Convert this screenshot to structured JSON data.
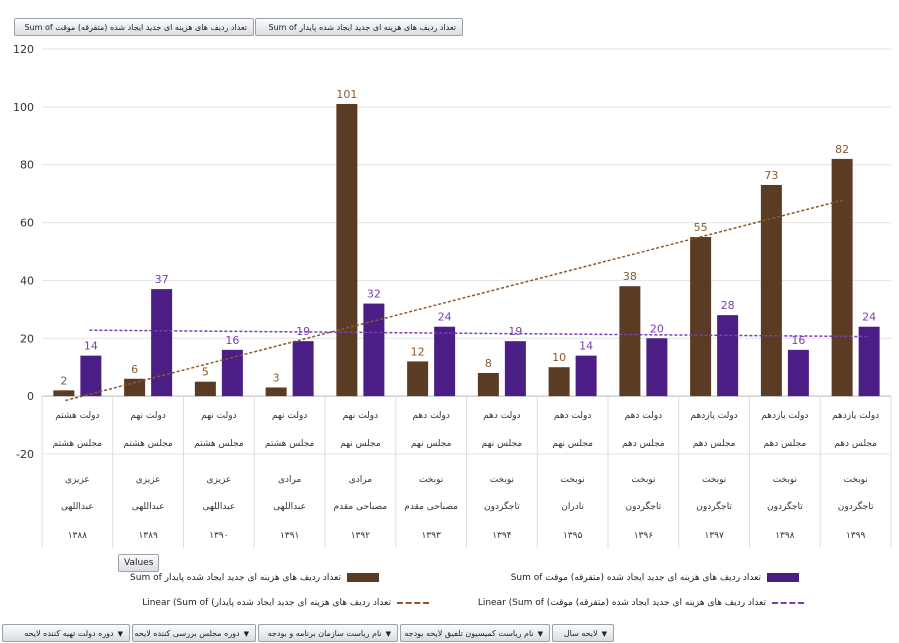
{
  "top_fields": [
    "تعداد ردیف های هزینه ای جدید ایجاد شده (متفرقه) موقت Sum of",
    "تعداد ردیف های هزینه ای جدید ایجاد شده پایدار Sum of"
  ],
  "values_button": "Values",
  "legend": [
    {
      "label": "تعداد ردیف های هزینه ای جدید ایجاد شده پایدار Sum of",
      "kind": "bar",
      "color": "#5a3b24"
    },
    {
      "label": "تعداد ردیف های هزینه ای جدید ایجاد شده (متفرقه) موقت Sum of",
      "kind": "bar",
      "color": "#4b1e86"
    },
    {
      "label": "تعداد ردیف های هزینه ای جدید ایجاد شده پایدار) Linear (Sum of",
      "kind": "trend",
      "color": "#8a5a2b"
    },
    {
      "label": "تعداد ردیف های هزینه ای جدید ایجاد شده (متفرقه) موقت) Linear (Sum of",
      "kind": "trend",
      "color": "#7a3fb0"
    }
  ],
  "bottom_fields": [
    "دوره دولت تهیه کننده لایحه",
    "دوره مجلس بررسی کننده لایحه",
    "نام ریاست سازمان برنامه و بودجه",
    "نام ریاست کمیسیون تلفیق لایحه بودجه",
    "لایحه سال"
  ],
  "chart_data": {
    "type": "bar",
    "ylim": [
      -20,
      120
    ],
    "yticks": [
      -20,
      0,
      20,
      40,
      60,
      80,
      100,
      120
    ],
    "grid": true,
    "categories": [
      {
        "gov": "دولت هشتم",
        "majlis": "مجلس هشتم",
        "pbo1": "عزیزی",
        "pbo2": "",
        "comm": "عبداللهی",
        "year": "۱۳۸۸"
      },
      {
        "gov": "دولت نهم",
        "majlis": "مجلس هشتم",
        "pbo1": "عزیزی",
        "pbo2": "",
        "comm": "عبداللهی",
        "year": "۱۳۸۹"
      },
      {
        "gov": "دولت نهم",
        "majlis": "مجلس هشتم",
        "pbo1": "عزیزی",
        "pbo2": "",
        "comm": "عبداللهی",
        "year": "۱۳۹۰"
      },
      {
        "gov": "دولت نهم",
        "majlis": "مجلس هشتم",
        "pbo1": "مرادی",
        "pbo2": "",
        "comm": "عبداللهی",
        "year": "۱۳۹۱"
      },
      {
        "gov": "دولت نهم",
        "majlis": "مجلس نهم",
        "pbo1": "مرادی",
        "pbo2": "",
        "comm": "مصباحی مقدم",
        "year": "۱۳۹۲"
      },
      {
        "gov": "دولت دهم",
        "majlis": "مجلس نهم",
        "pbo1": "نوبخت",
        "pbo2": "",
        "comm": "مصباحی مقدم",
        "year": "۱۳۹۳"
      },
      {
        "gov": "دولت دهم",
        "majlis": "مجلس نهم",
        "pbo1": "نوبخت",
        "pbo2": "",
        "comm": "تاجگردون",
        "year": "۱۳۹۴"
      },
      {
        "gov": "دولت دهم",
        "majlis": "مجلس نهم",
        "pbo1": "نوبخت",
        "pbo2": "",
        "comm": "نادران",
        "year": "۱۳۹۵"
      },
      {
        "gov": "دولت دهم",
        "majlis": "مجلس دهم",
        "pbo1": "نوبخت",
        "pbo2": "",
        "comm": "تاجگردون",
        "year": "۱۳۹۶"
      },
      {
        "gov": "دولت یازدهم",
        "majlis": "مجلس دهم",
        "pbo1": "نوبخت",
        "pbo2": "",
        "comm": "تاجگردون",
        "year": "۱۳۹۷"
      },
      {
        "gov": "دولت یازدهم",
        "majlis": "مجلس دهم",
        "pbo1": "نوبخت",
        "pbo2": "",
        "comm": "تاجگردون",
        "year": "۱۳۹۸"
      },
      {
        "gov": "دولت یازدهم",
        "majlis": "مجلس دهم",
        "pbo1": "نوبخت",
        "pbo2": "",
        "comm": "تاجگردون",
        "year": "۱۳۹۹"
      }
    ],
    "series": [
      {
        "name": "تعداد ردیف های هزینه ای جدید ایجاد شده پایدار Sum of",
        "color": "#5a3b24",
        "label_color": "#8a5a2b",
        "values": [
          2,
          6,
          5,
          3,
          101,
          12,
          8,
          10,
          38,
          55,
          73,
          82
        ],
        "trend": [
          -1.5,
          4.8,
          11.1,
          17.4,
          23.7,
          30.0,
          36.3,
          42.6,
          48.9,
          55.2,
          61.5,
          67.8
        ]
      },
      {
        "name": "تعداد ردیف های هزینه ای جدید ایجاد شده (متفرقه) موقت Sum of",
        "color": "#4b1e86",
        "label_color": "#7a3fb0",
        "values": [
          14,
          37,
          16,
          19,
          32,
          24,
          19,
          14,
          20,
          28,
          16,
          24
        ],
        "trend": [
          22.8,
          22.6,
          22.4,
          22.2,
          22.0,
          21.8,
          21.6,
          21.4,
          21.2,
          21.0,
          20.8,
          20.6
        ]
      }
    ]
  }
}
